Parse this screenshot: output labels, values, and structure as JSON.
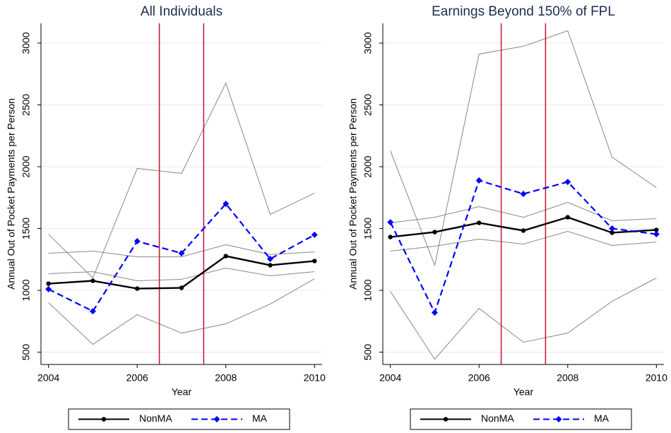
{
  "chart_data": [
    {
      "type": "line",
      "title": "All Individuals",
      "xlabel": "Year",
      "ylabel": "Annual Out of Pocket Payments per Person",
      "x": [
        2004,
        2005,
        2006,
        2007,
        2008,
        2009,
        2010
      ],
      "series": [
        {
          "name": "NonMA",
          "color": "#000000",
          "dash": false,
          "marker": "circle",
          "values": [
            1054,
            1077,
            1014,
            1020,
            1277,
            1203,
            1237
          ]
        },
        {
          "name": "MA",
          "color": "#0000ff",
          "dash": true,
          "marker": "diamond",
          "values": [
            1009,
            831,
            1397,
            1300,
            1700,
            1254,
            1449
          ]
        }
      ],
      "ci_lines": [
        {
          "color": "#888888",
          "values": [
            1300,
            1317,
            1271,
            1271,
            1369,
            1289,
            1311
          ]
        },
        {
          "color": "#888888",
          "values": [
            1134,
            1151,
            1077,
            1089,
            1180,
            1117,
            1151
          ]
        },
        {
          "color": "#888888",
          "values": [
            1454,
            1100,
            1986,
            1946,
            2677,
            1614,
            1786
          ]
        },
        {
          "color": "#888888",
          "values": [
            900,
            563,
            803,
            654,
            729,
            889,
            1094
          ]
        }
      ],
      "vlines": [
        2006.5,
        2007.5
      ],
      "vline_color": "#c8102e",
      "xlim": [
        2003.83,
        2010.17
      ],
      "xticks": [
        2004,
        2006,
        2008,
        2010
      ],
      "ylim": [
        400,
        3160
      ],
      "yticks": [
        500,
        1000,
        1500,
        2000,
        2500,
        3000
      ],
      "grid": true
    },
    {
      "type": "line",
      "title": "Earnings Beyond 150% of FPL",
      "xlabel": "Year",
      "ylabel": "Annual Out of Pocket Payments per Person",
      "x": [
        2004,
        2005,
        2006,
        2007,
        2008,
        2009,
        2010
      ],
      "series": [
        {
          "name": "NonMA",
          "color": "#000000",
          "dash": false,
          "marker": "circle",
          "values": [
            1431,
            1471,
            1546,
            1483,
            1591,
            1466,
            1489
          ]
        },
        {
          "name": "MA",
          "color": "#0000ff",
          "dash": true,
          "marker": "diamond",
          "values": [
            1551,
            820,
            1889,
            1780,
            1877,
            1500,
            1454
          ]
        }
      ],
      "ci_lines": [
        {
          "color": "#888888",
          "values": [
            1546,
            1591,
            1677,
            1591,
            1711,
            1563,
            1580
          ]
        },
        {
          "color": "#888888",
          "values": [
            1317,
            1357,
            1414,
            1374,
            1477,
            1363,
            1391
          ]
        },
        {
          "color": "#888888",
          "values": [
            2129,
            1203,
            2911,
            2974,
            3100,
            2077,
            1831
          ]
        },
        {
          "color": "#888888",
          "values": [
            991,
            443,
            854,
            580,
            654,
            911,
            1100
          ]
        }
      ],
      "vlines": [
        2006.5,
        2007.5
      ],
      "vline_color": "#c8102e",
      "xlim": [
        2003.83,
        2010.17
      ],
      "xticks": [
        2004,
        2006,
        2008,
        2010
      ],
      "ylim": [
        400,
        3160
      ],
      "yticks": [
        500,
        1000,
        1500,
        2000,
        2500,
        3000
      ],
      "grid": true
    }
  ]
}
